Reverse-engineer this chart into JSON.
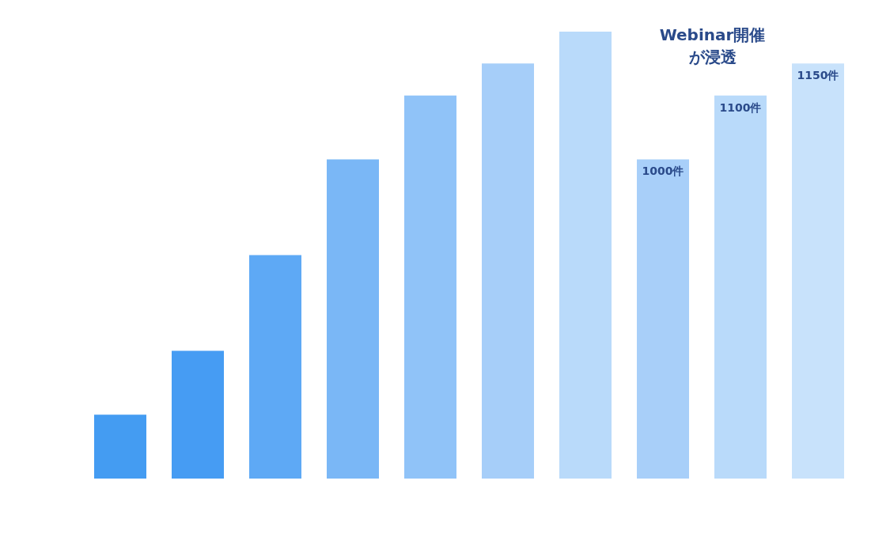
{
  "chart_data": {
    "type": "bar",
    "categories": [
      null,
      null,
      null,
      null,
      null,
      null,
      null,
      null,
      null,
      null
    ],
    "values": [
      600,
      700,
      850,
      1000,
      1100,
      1150,
      1200,
      1000,
      1100,
      1150
    ],
    "colors": [
      "#449cf2",
      "#469cf3",
      "#5ea9f5",
      "#7ab7f6",
      "#90c3f8",
      "#a6cef9",
      "#b9dafa",
      "#a8cff9",
      "#b9dafa",
      "#c8e2fb"
    ],
    "value_labels": [
      null,
      null,
      null,
      null,
      null,
      null,
      null,
      "1000件",
      "1100件",
      "1150件"
    ],
    "ylim": [
      500,
      1200
    ],
    "tick_labels": false,
    "annotations": [
      "Webinar開催が浸透"
    ]
  }
}
